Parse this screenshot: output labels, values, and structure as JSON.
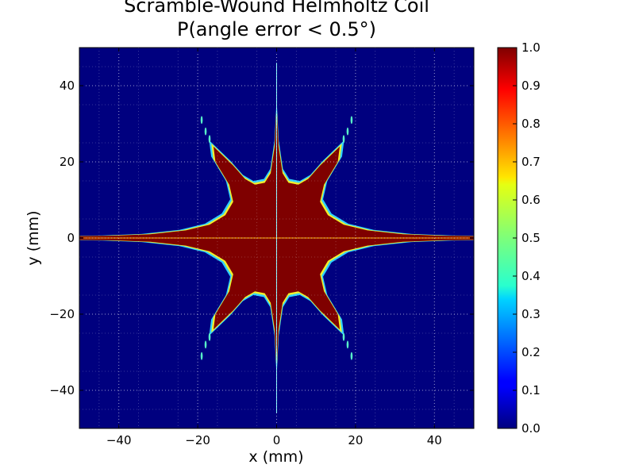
{
  "chart_data": {
    "type": "heatmap",
    "title_line1": "Scramble-Wound Helmholtz Coil",
    "title_line2": "P(angle error < 0.5°)",
    "xlabel": "x (mm)",
    "ylabel": "y (mm)",
    "xlim": [
      -50,
      50
    ],
    "ylim": [
      -50,
      50
    ],
    "x_ticks": [
      -40,
      -20,
      0,
      20,
      40
    ],
    "y_ticks": [
      -40,
      -20,
      0,
      20,
      40
    ],
    "x_tick_labels": [
      "−40",
      "−20",
      "0",
      "20",
      "40"
    ],
    "y_tick_labels": [
      "−40",
      "−20",
      "0",
      "20",
      "40"
    ],
    "grid": true,
    "colormap": "jet",
    "colorbar": {
      "range": [
        0.0,
        1.0
      ],
      "tick_labels": [
        "0.0",
        "0.1",
        "0.2",
        "0.3",
        "0.4",
        "0.5",
        "0.6",
        "0.7",
        "0.8",
        "0.9",
        "1.0"
      ]
    },
    "colors": {
      "low": "#00007f",
      "high": "#7f0000"
    }
  }
}
